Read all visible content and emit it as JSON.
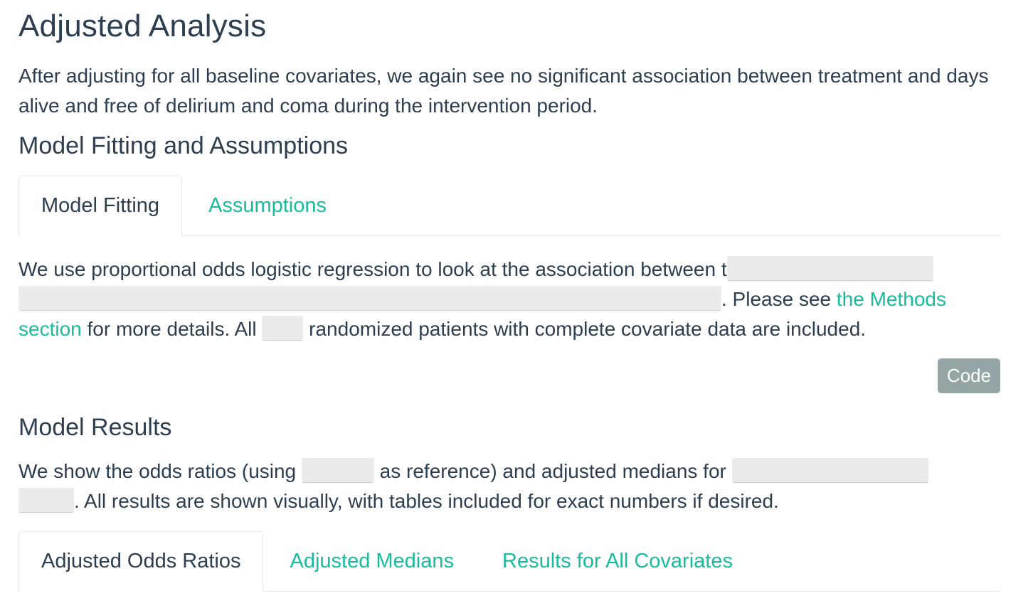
{
  "page": {
    "title": "Adjusted Analysis",
    "intro": "After adjusting for all baseline covariates, we again see no significant association between treatment and days alive and free of delirium and coma during the intervention period."
  },
  "fitting_section": {
    "heading": "Model Fitting and Assumptions",
    "tabs": [
      {
        "label": "Model Fitting",
        "active": true
      },
      {
        "label": "Assumptions",
        "active": false
      }
    ],
    "text_part1": "We use proportional odds logistic regression to look at the association between t",
    "text_part2": ". Please see ",
    "methods_link": "the Methods section",
    "text_part3": " for more details. All ",
    "text_part4": " randomized patients with complete covariate data are included.",
    "code_button": "Code"
  },
  "results_section": {
    "heading": "Model Results",
    "text_part1": "We show the odds ratios (using ",
    "text_part2": " as reference) and adjusted medians for ",
    "text_part3": ". All results are shown visually, with tables included for exact numbers if desired.",
    "tabs": [
      {
        "label": "Adjusted Odds Ratios",
        "active": true
      },
      {
        "label": "Adjusted Medians",
        "active": false
      },
      {
        "label": "Results for All Covariates",
        "active": false
      }
    ]
  },
  "colors": {
    "text": "#2c3e50",
    "link": "#18bc9c",
    "button": "#95a5a6",
    "redaction": "#ebebeb"
  }
}
